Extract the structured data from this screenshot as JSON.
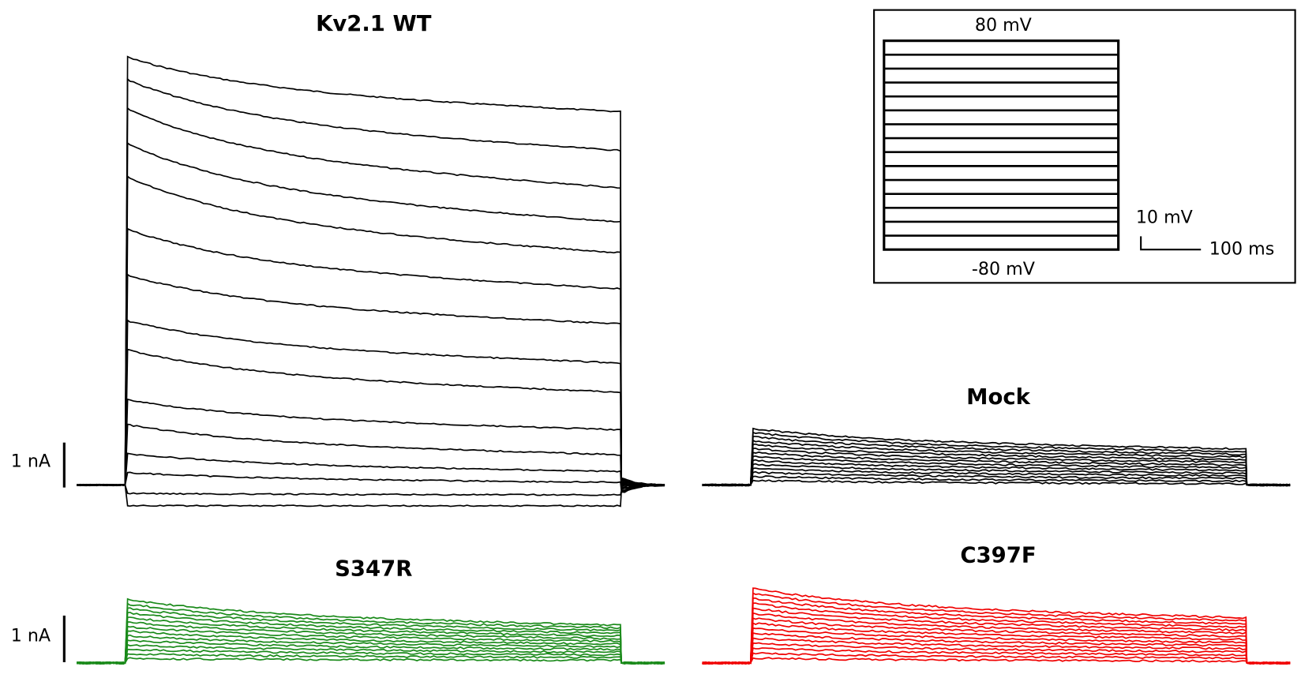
{
  "panels": [
    {
      "title": "Kv2.1 WT"
    },
    {
      "title": "Mock"
    },
    {
      "title": "S347R"
    },
    {
      "title": "C397F"
    }
  ],
  "scale_bars": {
    "current": "1 nA"
  },
  "protocol": {
    "top": "80 mV",
    "bottom": "-80 mV",
    "voltage_scale": "10 mV",
    "time_scale": "100 ms"
  }
}
